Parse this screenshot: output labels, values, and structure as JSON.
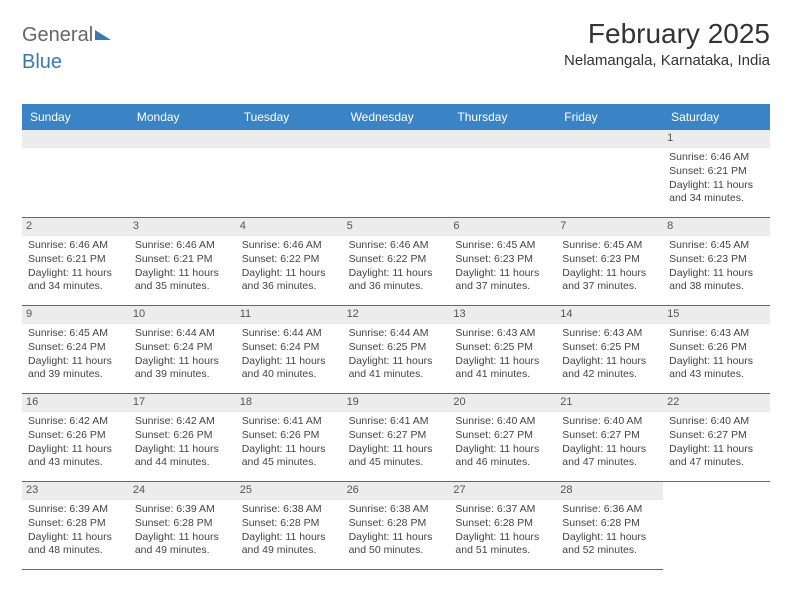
{
  "logo": {
    "part1": "General",
    "part2": "Blue"
  },
  "title": "February 2025",
  "location": "Nelamangala, Karnataka, India",
  "weekdays": [
    "Sunday",
    "Monday",
    "Tuesday",
    "Wednesday",
    "Thursday",
    "Friday",
    "Saturday"
  ],
  "colors": {
    "header_bar": "#3a84c5",
    "daynum_bg": "#ececec",
    "cell_border": "#4a6f94",
    "text": "#444444"
  },
  "layout": {
    "cols": 7,
    "rows": 5,
    "blank_leading": 6
  },
  "days": [
    {
      "n": 1,
      "sunrise": "6:46 AM",
      "sunset": "6:21 PM",
      "daylight": "11 hours and 34 minutes."
    },
    {
      "n": 2,
      "sunrise": "6:46 AM",
      "sunset": "6:21 PM",
      "daylight": "11 hours and 34 minutes."
    },
    {
      "n": 3,
      "sunrise": "6:46 AM",
      "sunset": "6:21 PM",
      "daylight": "11 hours and 35 minutes."
    },
    {
      "n": 4,
      "sunrise": "6:46 AM",
      "sunset": "6:22 PM",
      "daylight": "11 hours and 36 minutes."
    },
    {
      "n": 5,
      "sunrise": "6:46 AM",
      "sunset": "6:22 PM",
      "daylight": "11 hours and 36 minutes."
    },
    {
      "n": 6,
      "sunrise": "6:45 AM",
      "sunset": "6:23 PM",
      "daylight": "11 hours and 37 minutes."
    },
    {
      "n": 7,
      "sunrise": "6:45 AM",
      "sunset": "6:23 PM",
      "daylight": "11 hours and 37 minutes."
    },
    {
      "n": 8,
      "sunrise": "6:45 AM",
      "sunset": "6:23 PM",
      "daylight": "11 hours and 38 minutes."
    },
    {
      "n": 9,
      "sunrise": "6:45 AM",
      "sunset": "6:24 PM",
      "daylight": "11 hours and 39 minutes."
    },
    {
      "n": 10,
      "sunrise": "6:44 AM",
      "sunset": "6:24 PM",
      "daylight": "11 hours and 39 minutes."
    },
    {
      "n": 11,
      "sunrise": "6:44 AM",
      "sunset": "6:24 PM",
      "daylight": "11 hours and 40 minutes."
    },
    {
      "n": 12,
      "sunrise": "6:44 AM",
      "sunset": "6:25 PM",
      "daylight": "11 hours and 41 minutes."
    },
    {
      "n": 13,
      "sunrise": "6:43 AM",
      "sunset": "6:25 PM",
      "daylight": "11 hours and 41 minutes."
    },
    {
      "n": 14,
      "sunrise": "6:43 AM",
      "sunset": "6:25 PM",
      "daylight": "11 hours and 42 minutes."
    },
    {
      "n": 15,
      "sunrise": "6:43 AM",
      "sunset": "6:26 PM",
      "daylight": "11 hours and 43 minutes."
    },
    {
      "n": 16,
      "sunrise": "6:42 AM",
      "sunset": "6:26 PM",
      "daylight": "11 hours and 43 minutes."
    },
    {
      "n": 17,
      "sunrise": "6:42 AM",
      "sunset": "6:26 PM",
      "daylight": "11 hours and 44 minutes."
    },
    {
      "n": 18,
      "sunrise": "6:41 AM",
      "sunset": "6:26 PM",
      "daylight": "11 hours and 45 minutes."
    },
    {
      "n": 19,
      "sunrise": "6:41 AM",
      "sunset": "6:27 PM",
      "daylight": "11 hours and 45 minutes."
    },
    {
      "n": 20,
      "sunrise": "6:40 AM",
      "sunset": "6:27 PM",
      "daylight": "11 hours and 46 minutes."
    },
    {
      "n": 21,
      "sunrise": "6:40 AM",
      "sunset": "6:27 PM",
      "daylight": "11 hours and 47 minutes."
    },
    {
      "n": 22,
      "sunrise": "6:40 AM",
      "sunset": "6:27 PM",
      "daylight": "11 hours and 47 minutes."
    },
    {
      "n": 23,
      "sunrise": "6:39 AM",
      "sunset": "6:28 PM",
      "daylight": "11 hours and 48 minutes."
    },
    {
      "n": 24,
      "sunrise": "6:39 AM",
      "sunset": "6:28 PM",
      "daylight": "11 hours and 49 minutes."
    },
    {
      "n": 25,
      "sunrise": "6:38 AM",
      "sunset": "6:28 PM",
      "daylight": "11 hours and 49 minutes."
    },
    {
      "n": 26,
      "sunrise": "6:38 AM",
      "sunset": "6:28 PM",
      "daylight": "11 hours and 50 minutes."
    },
    {
      "n": 27,
      "sunrise": "6:37 AM",
      "sunset": "6:28 PM",
      "daylight": "11 hours and 51 minutes."
    },
    {
      "n": 28,
      "sunrise": "6:36 AM",
      "sunset": "6:28 PM",
      "daylight": "11 hours and 52 minutes."
    }
  ],
  "labels": {
    "sunrise_prefix": "Sunrise: ",
    "sunset_prefix": "Sunset: ",
    "daylight_prefix": "Daylight: "
  }
}
